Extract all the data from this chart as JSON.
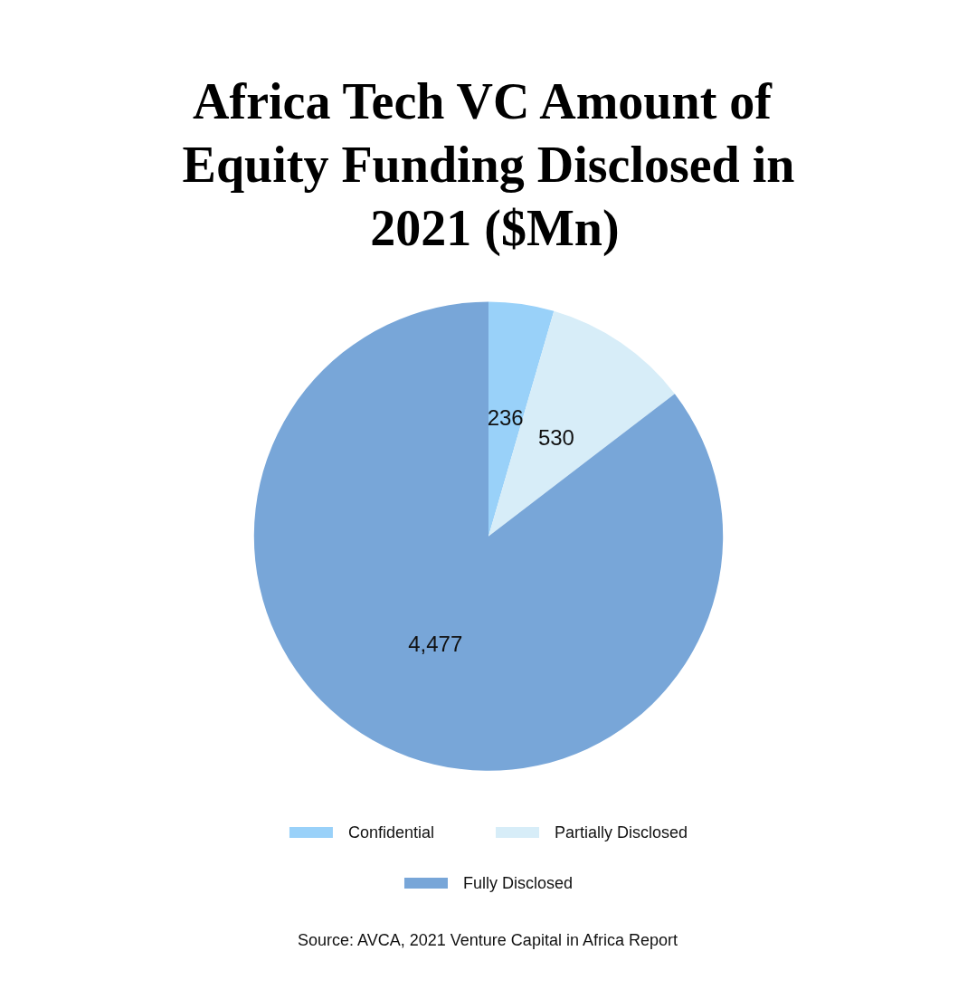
{
  "chart_data": {
    "type": "pie",
    "title": "Africa Tech VC Amount of Equity Funding Disclosed in 2021 ($Mn)",
    "categories": [
      "Confidential",
      "Partially Disclosed",
      "Fully Disclosed"
    ],
    "values": [
      236,
      530,
      4477
    ],
    "colors": [
      "#99d1f9",
      "#d7edf8",
      "#78a6d8"
    ],
    "value_labels": [
      "236",
      "530",
      "4,477"
    ],
    "legend": "bottom",
    "annotations": [
      "Source: AVCA, 2021 Venture Capital in Africa Report"
    ]
  }
}
